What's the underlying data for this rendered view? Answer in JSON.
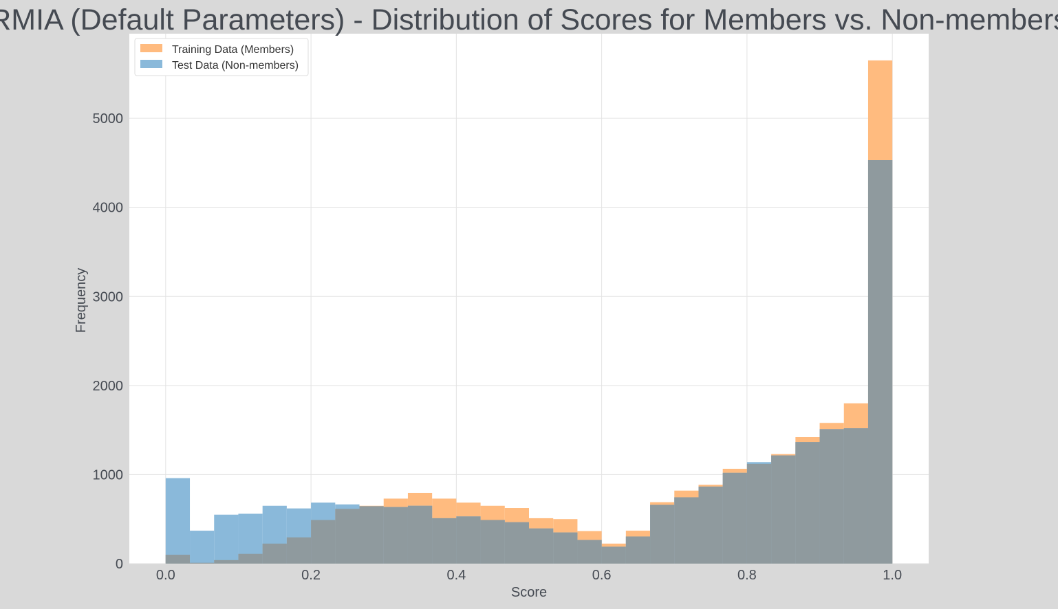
{
  "colors": {
    "figure_background": "#d9d9d9",
    "plot_background": "#ffffff",
    "grid": "#e3e3e3",
    "text": "#454a52",
    "members": "#ffbb7f",
    "non_members": "#8ab9da",
    "overlap": "#8f9a9e"
  },
  "chart_data": {
    "type": "bar",
    "subtype": "overlaid-histogram",
    "title": "RMIA (Default Parameters) - Distribution of Scores for Members vs. Non-members",
    "xlabel": "Score",
    "ylabel": "Frequency",
    "xlim": [
      -0.05,
      1.05
    ],
    "ylim": [
      0,
      5950
    ],
    "x_ticks": [
      0.0,
      0.2,
      0.4,
      0.6,
      0.8,
      1.0
    ],
    "x_tick_labels": [
      "0.0",
      "0.2",
      "0.4",
      "0.6",
      "0.8",
      "1.0"
    ],
    "y_ticks": [
      0,
      1000,
      2000,
      3000,
      4000,
      5000
    ],
    "y_tick_labels": [
      "0",
      "1000",
      "2000",
      "3000",
      "4000",
      "5000"
    ],
    "grid": true,
    "legend_position": "top-left",
    "bins": 30,
    "bin_range": [
      0.0,
      1.0
    ],
    "series": [
      {
        "name": "Training Data (Members)",
        "color": "#ffbb7f",
        "values": [
          100,
          10,
          40,
          110,
          225,
          295,
          490,
          615,
          650,
          730,
          795,
          730,
          685,
          650,
          625,
          510,
          500,
          365,
          225,
          370,
          690,
          820,
          885,
          1065,
          1120,
          1230,
          1420,
          1580,
          1800,
          5650
        ]
      },
      {
        "name": "Test Data (Non-members)",
        "color": "#8ab9da",
        "values": [
          960,
          370,
          550,
          560,
          650,
          620,
          685,
          665,
          645,
          635,
          650,
          510,
          530,
          490,
          465,
          395,
          350,
          265,
          190,
          305,
          660,
          745,
          865,
          1020,
          1140,
          1215,
          1365,
          1510,
          1520,
          4530
        ]
      }
    ]
  }
}
